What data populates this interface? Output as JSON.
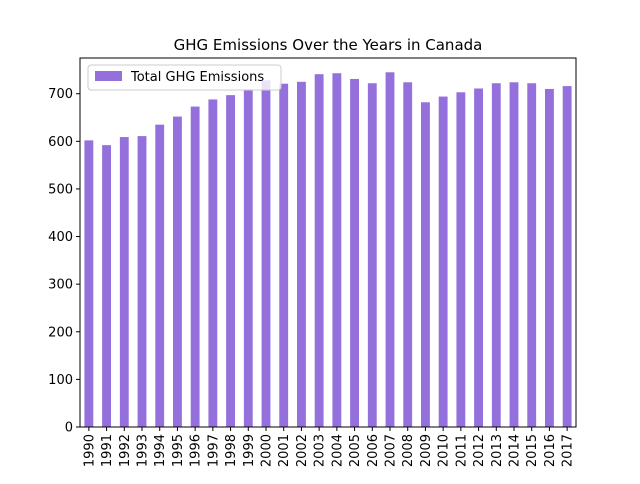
{
  "chart_data": {
    "type": "bar",
    "title": "GHG Emissions Over the Years in Canada",
    "xlabel": "",
    "ylabel": "",
    "categories": [
      "1990",
      "1991",
      "1992",
      "1993",
      "1994",
      "1995",
      "1996",
      "1997",
      "1998",
      "1999",
      "2000",
      "2001",
      "2002",
      "2003",
      "2004",
      "2005",
      "2006",
      "2007",
      "2008",
      "2009",
      "2010",
      "2011",
      "2012",
      "2013",
      "2014",
      "2015",
      "2016",
      "2017"
    ],
    "series": [
      {
        "name": "Total GHG Emissions",
        "color": "#9370DB",
        "values": [
          602,
          592,
          609,
          611,
          635,
          652,
          673,
          688,
          697,
          708,
          728,
          721,
          725,
          741,
          743,
          731,
          722,
          745,
          724,
          682,
          694,
          703,
          711,
          722,
          724,
          722,
          710,
          716
        ]
      }
    ],
    "ylim": [
      0,
      775
    ],
    "yticks": [
      0,
      100,
      200,
      300,
      400,
      500,
      600,
      700
    ],
    "legend_position": "top-left",
    "grid": false
  }
}
